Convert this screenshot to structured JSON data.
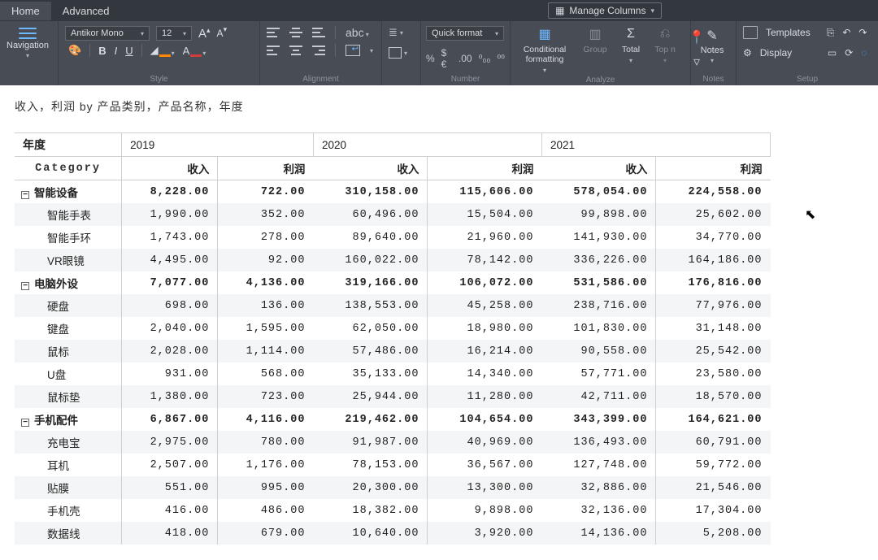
{
  "tabs": {
    "home": "Home",
    "advanced": "Advanced"
  },
  "manage_columns": "Manage Columns",
  "groups": {
    "style": "Style",
    "alignment": "Alignment",
    "number": "Number",
    "analyze": "Analyze",
    "notes": "Notes",
    "setup": "Setup"
  },
  "nav_label": "Navigation",
  "font": {
    "name": "Antikor Mono",
    "size": "12"
  },
  "biu": {
    "b": "B",
    "i": "I",
    "u": "U"
  },
  "fill_color": "#ff8800",
  "font_color": "#d13b3b",
  "abc": "abc",
  "quick_format": "Quick format",
  "num_symbols": {
    "pct": "%",
    "dollar": "$€",
    "thou": ".00",
    "dec0": "⁰₀₀",
    "dec1": "⁰⁰"
  },
  "analyze": {
    "cond": "Conditional formatting",
    "group": "Group",
    "total": "Total",
    "topn": "Top n"
  },
  "notes_label": "Notes",
  "setup": {
    "templates": "Templates",
    "display": "Display"
  },
  "report": {
    "title": "收入，利润 by 产品类别，产品名称，年度",
    "year_label": "年度",
    "category_label": "Category",
    "years": [
      "2019",
      "2020",
      "2021"
    ],
    "measures": [
      "收入",
      "利润"
    ],
    "sections": [
      {
        "name": "智能设备",
        "totals": [
          "8,228.00",
          "722.00",
          "310,158.00",
          "115,606.00",
          "578,054.00",
          "224,558.00"
        ],
        "rows": [
          {
            "label": "智能手表",
            "v": [
              "1,990.00",
              "352.00",
              "60,496.00",
              "15,504.00",
              "99,898.00",
              "25,602.00"
            ]
          },
          {
            "label": "智能手环",
            "v": [
              "1,743.00",
              "278.00",
              "89,640.00",
              "21,960.00",
              "141,930.00",
              "34,770.00"
            ]
          },
          {
            "label": "VR眼镜",
            "v": [
              "4,495.00",
              "92.00",
              "160,022.00",
              "78,142.00",
              "336,226.00",
              "164,186.00"
            ]
          }
        ]
      },
      {
        "name": "电脑外设",
        "totals": [
          "7,077.00",
          "4,136.00",
          "319,166.00",
          "106,072.00",
          "531,586.00",
          "176,816.00"
        ],
        "rows": [
          {
            "label": "硬盘",
            "v": [
              "698.00",
              "136.00",
              "138,553.00",
              "45,258.00",
              "238,716.00",
              "77,976.00"
            ]
          },
          {
            "label": "键盘",
            "v": [
              "2,040.00",
              "1,595.00",
              "62,050.00",
              "18,980.00",
              "101,830.00",
              "31,148.00"
            ]
          },
          {
            "label": "鼠标",
            "v": [
              "2,028.00",
              "1,114.00",
              "57,486.00",
              "16,214.00",
              "90,558.00",
              "25,542.00"
            ]
          },
          {
            "label": "U盘",
            "v": [
              "931.00",
              "568.00",
              "35,133.00",
              "14,340.00",
              "57,771.00",
              "23,580.00"
            ]
          },
          {
            "label": "鼠标垫",
            "v": [
              "1,380.00",
              "723.00",
              "25,944.00",
              "11,280.00",
              "42,711.00",
              "18,570.00"
            ]
          }
        ]
      },
      {
        "name": "手机配件",
        "totals": [
          "6,867.00",
          "4,116.00",
          "219,462.00",
          "104,654.00",
          "343,399.00",
          "164,621.00"
        ],
        "rows": [
          {
            "label": "充电宝",
            "v": [
              "2,975.00",
              "780.00",
              "91,987.00",
              "40,969.00",
              "136,493.00",
              "60,791.00"
            ]
          },
          {
            "label": "耳机",
            "v": [
              "2,507.00",
              "1,176.00",
              "78,153.00",
              "36,567.00",
              "127,748.00",
              "59,772.00"
            ]
          },
          {
            "label": "贴膜",
            "v": [
              "551.00",
              "995.00",
              "20,300.00",
              "13,300.00",
              "32,886.00",
              "21,546.00"
            ]
          },
          {
            "label": "手机壳",
            "v": [
              "416.00",
              "486.00",
              "18,382.00",
              "9,898.00",
              "32,136.00",
              "17,304.00"
            ]
          },
          {
            "label": "数据线",
            "v": [
              "418.00",
              "679.00",
              "10,640.00",
              "3,920.00",
              "14,136.00",
              "5,208.00"
            ]
          }
        ]
      }
    ]
  }
}
